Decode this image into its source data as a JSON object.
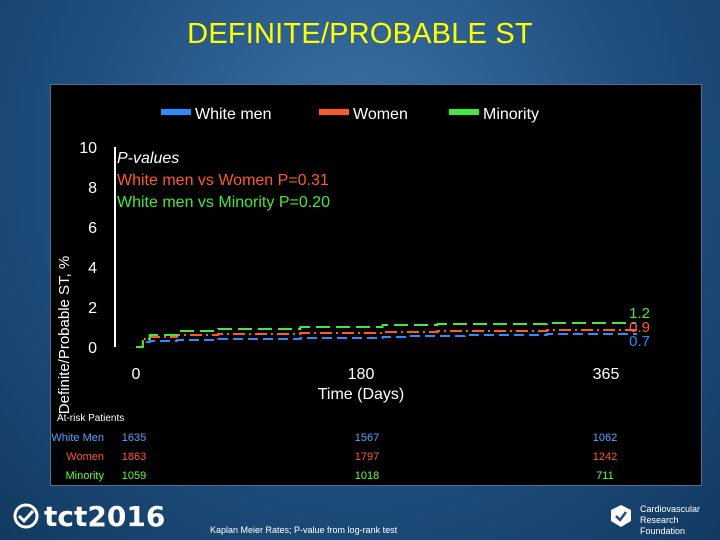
{
  "slide": {
    "title": "DEFINITE/PROBABLE ST",
    "note": "Kaplan Meier Rates; P-value from log-rank test",
    "logo_left": "tct2016",
    "logo_right_line1": "Cardiovascular",
    "logo_right_line2": "Research Foundation"
  },
  "pvalues": {
    "header": "P-values",
    "line1": "White men vs Women  P=0.31",
    "line2": "White men vs Minority P=0.20"
  },
  "at_risk": {
    "title": "At-risk Patients",
    "rows": [
      {
        "label": "White Men",
        "values": [
          "1635",
          "1567",
          "1062"
        ],
        "color": "#4da6ff"
      },
      {
        "label": "Women",
        "values": [
          "1863",
          "1797",
          "1242"
        ],
        "color": "#ff5a2a"
      },
      {
        "label": "Minority",
        "values": [
          "1059",
          "1018",
          "711"
        ],
        "color": "#5dff3a"
      }
    ]
  },
  "chart_data": {
    "type": "line",
    "title": "DEFINITE/PROBABLE ST",
    "xlabel": "Time (Days)",
    "ylabel": "Definite/Probable ST, %",
    "xlim": [
      0,
      365
    ],
    "ylim": [
      0,
      10
    ],
    "x_ticks": [
      "0",
      "180",
      "365"
    ],
    "y_ticks": [
      "0",
      "2",
      "4",
      "6",
      "8",
      "10"
    ],
    "legend_position": "top",
    "series": [
      {
        "name": "White men",
        "color": "#2a8cff",
        "end_label": "0.7",
        "x": [
          0,
          5,
          10,
          30,
          60,
          120,
          180,
          200,
          240,
          300,
          365
        ],
        "y": [
          0,
          0.25,
          0.3,
          0.35,
          0.4,
          0.45,
          0.5,
          0.55,
          0.6,
          0.65,
          0.7
        ]
      },
      {
        "name": "Women",
        "color": "#ff5a2a",
        "end_label": "0.9",
        "x": [
          0,
          5,
          10,
          30,
          60,
          120,
          180,
          220,
          300,
          365
        ],
        "y": [
          0,
          0.4,
          0.5,
          0.6,
          0.65,
          0.7,
          0.75,
          0.8,
          0.85,
          0.9
        ]
      },
      {
        "name": "Minority",
        "color": "#44e83a",
        "end_label": "1.2",
        "x": [
          0,
          5,
          10,
          30,
          60,
          120,
          180,
          220,
          300,
          365
        ],
        "y": [
          0,
          0.4,
          0.6,
          0.8,
          0.9,
          1.0,
          1.1,
          1.15,
          1.2,
          1.2
        ]
      }
    ]
  }
}
